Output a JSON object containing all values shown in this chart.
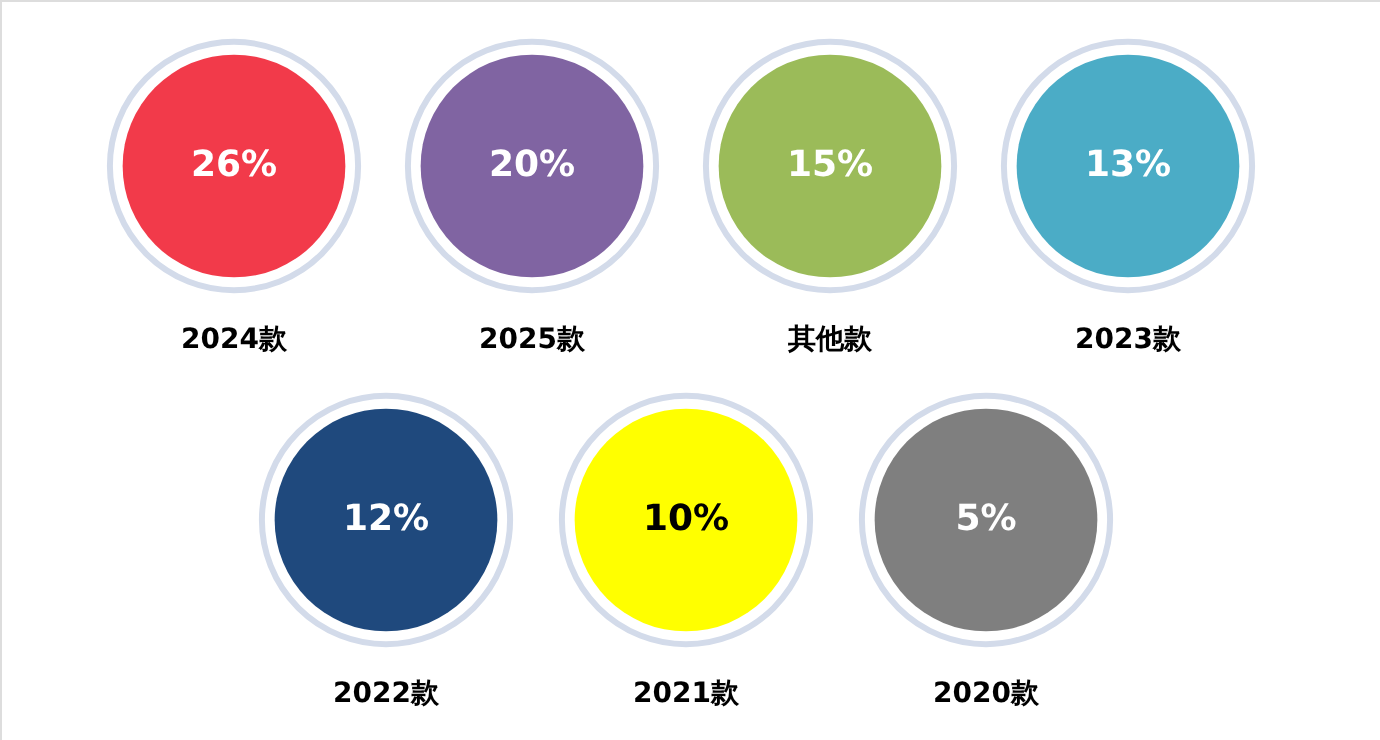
{
  "chart_data": {
    "type": "other",
    "categories": [
      "2024款",
      "2025款",
      "其他款",
      "2023款",
      "2022款",
      "2021款",
      "2020款"
    ],
    "values": [
      26,
      20,
      15,
      13,
      12,
      10,
      5
    ],
    "value_labels": [
      "26%",
      "20%",
      "15%",
      "13%",
      "12%",
      "10%",
      "5%"
    ],
    "colors": [
      "#f23a4a",
      "#8064a2",
      "#9bbb59",
      "#4bacc6",
      "#1f497d",
      "#ffff00",
      "#7f7f7f"
    ]
  }
}
